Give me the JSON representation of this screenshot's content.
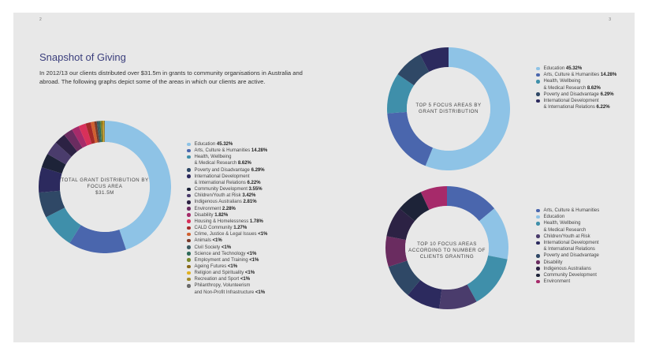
{
  "page": {
    "left_number": "2",
    "right_number": "3"
  },
  "title": "Snapshot of Giving",
  "intro": "In 2012/13 our clients distributed over $31.5m in grants to community organisations in Australia and abroad. The following graphs depict some of the areas in which our clients are active.",
  "chart_data": [
    {
      "type": "pie",
      "title": "TOTAL GRANT DISTRIBUTION BY FOCUS AREA",
      "subtitle": "$31.5M",
      "categories": [
        "Education",
        "Arts, Culture & Humanities",
        "Health, Wellbeing & Medical Research",
        "Poverty and Disadvantage",
        "International Development & International Relations",
        "Community Development",
        "Children/Youth at Risk",
        "Indigenous Australians",
        "Environment",
        "Disability",
        "Housing & Homelessness",
        "CALD Community",
        "Crime, Justice & Legal Issues",
        "Animals",
        "Civil Society",
        "Science and Technology",
        "Employment and Training",
        "Ageing Futures",
        "Religion and Spirituality",
        "Recreation and Sport",
        "Philanthropy, Volunteerism and Non-Profit Infrastructure"
      ],
      "values": [
        45.32,
        14.28,
        8.62,
        6.29,
        6.22,
        3.55,
        3.42,
        2.81,
        2.28,
        1.82,
        1.78,
        1.27,
        0.9,
        0.6,
        0.5,
        0.4,
        0.3,
        0.3,
        0.2,
        0.2,
        0.1
      ],
      "labels": [
        "Education",
        "Arts, Culture & Humanities",
        "Health, Wellbeing\n& Medical Research",
        "Poverty and Disadvantage",
        "International Development\n& International Relations",
        "Community Development",
        "Children/Youth at Risk",
        "Indigenous Australians",
        "Environment",
        "Disability",
        "Housing & Homelessness",
        "CALD Community",
        "Crime, Justice & Legal Issues",
        "Animals",
        "Civil Society",
        "Science and Technology",
        "Employment and Training",
        "Ageing Futures",
        "Religion and Spirituality",
        "Recreation and Sport",
        "Philanthropy, Volunteerism\nand Non-Profit Infrastructure"
      ],
      "value_labels": [
        "45.32%",
        "14.28%",
        "8.62%",
        "6.29%",
        "6.22%",
        "3.55%",
        "3.42%",
        "2.81%",
        "2.28%",
        "1.82%",
        "1.78%",
        "1.27%",
        "<1%",
        "<1%",
        "<1%",
        "<1%",
        "<1%",
        "<1%",
        "<1%",
        "<1%",
        "<1%"
      ],
      "colors": [
        "#8ec3e6",
        "#4a66ad",
        "#3f8faa",
        "#2f4866",
        "#2c2a5e",
        "#1d2338",
        "#4a3c6c",
        "#2c2244",
        "#6a2c60",
        "#a62a6a",
        "#d8305a",
        "#a52a2a",
        "#d06030",
        "#7a3a2a",
        "#3b5a60",
        "#2f6a5a",
        "#7a8a2a",
        "#8a6a1a",
        "#e0b020",
        "#a08a2a",
        "#6a6a6a"
      ]
    },
    {
      "type": "pie",
      "title": "TOP 5 FOCUS AREAS BY GRANT DISTRIBUTION",
      "categories": [
        "Education",
        "Arts, Culture & Humanities",
        "Health, Wellbeing & Medical Research",
        "Poverty and Disadvantage",
        "International Development & International Relations"
      ],
      "values": [
        45.32,
        14.28,
        8.62,
        6.29,
        6.22
      ],
      "labels": [
        "Education",
        "Arts, Culture & Humanities",
        "Health, Wellbeing\n& Medical Research",
        "Poverty and Disadvantage",
        "International Development\n& International Relations"
      ],
      "value_labels": [
        "45.32%",
        "14.28%",
        "8.62%",
        "6.29%",
        "6.22%"
      ],
      "colors": [
        "#8ec3e6",
        "#4a66ad",
        "#3f8faa",
        "#2f4866",
        "#2c2a5e"
      ]
    },
    {
      "type": "pie",
      "title": "TOP 10 FOCUS AREAS ACCORDING TO NUMBER OF CLIENTS GRANTING",
      "categories": [
        "Arts, Culture & Humanities",
        "Education",
        "Health, Wellbeing & Medical Research",
        "Children/Youth at Risk",
        "International Development & International Relations",
        "Poverty and Disadvantage",
        "Disability",
        "Indigenous Australians",
        "Community Development",
        "Environment"
      ],
      "values": [
        14,
        14,
        14,
        10,
        9,
        9,
        8,
        8,
        7,
        7
      ],
      "labels": [
        "Arts, Culture & Humanities",
        "Education",
        "Health, Wellbeing\n& Medical Research",
        "Children/Youth at Risk",
        "International Development\n& International Relations",
        "Poverty and Disadvantage",
        "Disability",
        "Indigenous Australians",
        "Community Development",
        "Environment"
      ],
      "colors": [
        "#4a66ad",
        "#8ec3e6",
        "#3f8faa",
        "#4a3c6c",
        "#2c2a5e",
        "#2f4866",
        "#6a2c60",
        "#2c2244",
        "#1d2338",
        "#a62a6a"
      ]
    }
  ]
}
